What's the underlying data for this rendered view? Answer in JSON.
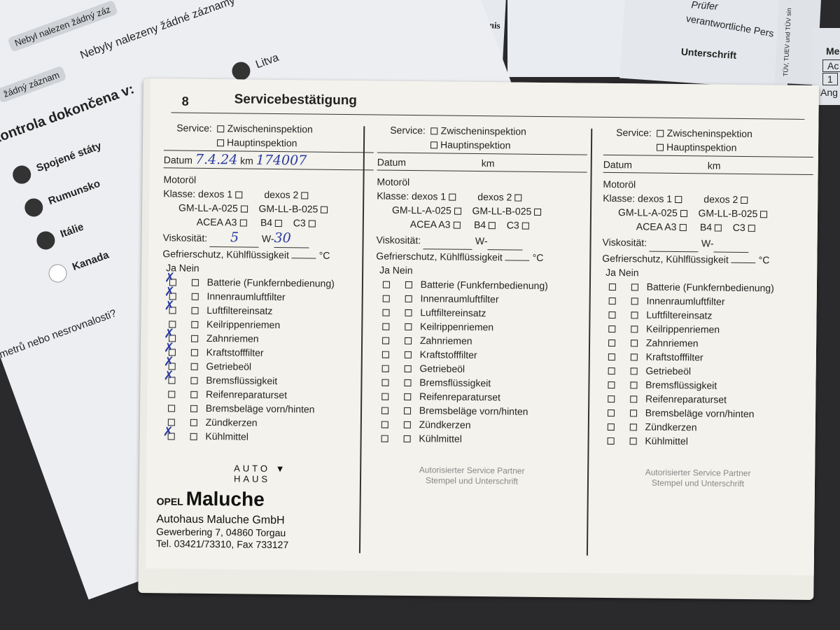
{
  "left_paper": {
    "chip1": "Nebyl nalezen žádný záz",
    "line1": "Nebyly nalezeny žádné záznamy",
    "chip2": "žádný záznam",
    "country_top": "Litva",
    "heading": "– kontrola dokončena v:",
    "countries": [
      "Spojené státy",
      "Rumunsko",
      "Itálie",
      "Kanada"
    ],
    "question": "metrů nebo nesrovnalosti?"
  },
  "top_papers": {
    "ergebnis": "ebnis",
    "pruefer": "Prüfer",
    "verantwortlich": "verantwortliche Pers",
    "unterschrift": "Unterschrift",
    "tuev": "TÜV, TUEV und TÜV sin",
    "me": "Me",
    "ac": "Ac",
    "one": "1",
    "ang": "Ang"
  },
  "booklet": {
    "page_number": "8",
    "title": "Servicebestätigung",
    "labels": {
      "service": "Service:",
      "zwischen": "Zwischeninspektion",
      "haupt": "Hauptinspektion",
      "datum": "Datum",
      "km": "km",
      "motoroel": "Motoröl",
      "klasse": "Klasse:",
      "dexos1": "dexos 1",
      "dexos2": "dexos 2",
      "gmA": "GM-LL-A-025",
      "gmB": "GM-LL-B-025",
      "acea": "ACEA A3",
      "b4": "B4",
      "c3": "C3",
      "visko": "Viskosität:",
      "w": "W-",
      "frost": "Gefrierschutz, Kühlflüssigkeit",
      "celsius": "°C",
      "ja": "Ja",
      "nein": "Nein",
      "stamp1": "Autorisierter Service Partner",
      "stamp2": "Stempel und Unterschrift"
    },
    "items": [
      "Batterie (Funkfernbedienung)",
      "Innenraumluftfilter",
      "Luftfiltereinsatz",
      "Keilrippenriemen",
      "Zahnriemen",
      "Kraftstofffilter",
      "Getriebeöl",
      "Bremsflüssigkeit",
      "Reifenreparaturset",
      "Bremsbeläge vorn/hinten",
      "Zündkerzen",
      "Kühlmittel"
    ],
    "entry1": {
      "date": "7.4.24",
      "km": "174007",
      "visc_low": "5",
      "visc_high": "30",
      "ja_checked": [
        true,
        true,
        true,
        false,
        true,
        true,
        true,
        true,
        false,
        false,
        false,
        true
      ]
    },
    "stamp": {
      "brand": "OPEL",
      "auto": "AUTO",
      "haus": "HAUS",
      "name": "Maluche",
      "company": "Autohaus Maluche GmbH",
      "address": "Gewerbering 7, 04860 Torgau",
      "phone": "Tel. 03421/73310, Fax 733127"
    }
  }
}
